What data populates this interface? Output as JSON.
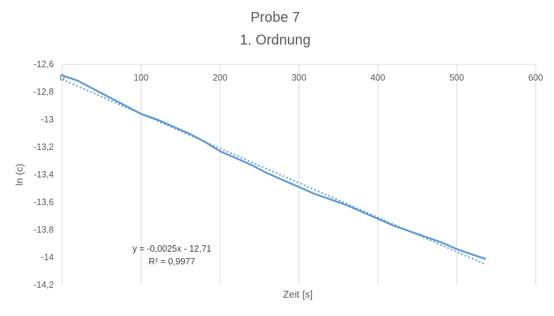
{
  "chart_data": {
    "type": "line",
    "title": [
      "Probe 7",
      "1. Ordnung"
    ],
    "xlabel": "Zeit [s]",
    "ylabel": "ln (c)",
    "xlim": [
      0,
      600
    ],
    "ylim": [
      -14.2,
      -12.6
    ],
    "x_ticks": [
      0,
      100,
      200,
      300,
      400,
      500,
      600
    ],
    "x_tick_labels": [
      "0",
      "100",
      "200",
      "300",
      "400",
      "500",
      "600"
    ],
    "y_ticks": [
      -12.6,
      -12.8,
      -13,
      -13.2,
      -13.4,
      -13.6,
      -13.8,
      -14,
      -14.2
    ],
    "y_tick_labels": [
      "-12,6",
      "-12,8",
      "-13",
      "-13,2",
      "-13,4",
      "-13,6",
      "-13,8",
      "-14",
      "-14,2"
    ],
    "x_axis_position": "top",
    "grid": {
      "vertical": true,
      "horizontal": false
    },
    "colors": {
      "series": "#5b9bd5",
      "trendline": "#5b9bd5",
      "grid": "#d9d9d9",
      "text": "#595959"
    },
    "series": [
      {
        "x": [
          0,
          20,
          40,
          60,
          80,
          100,
          120,
          140,
          160,
          180,
          200,
          220,
          240,
          260,
          280,
          300,
          320,
          340,
          360,
          380,
          400,
          420,
          440,
          460,
          480,
          500,
          520,
          536
        ],
        "y": [
          -12.68,
          -12.72,
          -12.78,
          -12.84,
          -12.9,
          -12.96,
          -13.0,
          -13.05,
          -13.1,
          -13.16,
          -13.23,
          -13.28,
          -13.33,
          -13.39,
          -13.44,
          -13.49,
          -13.54,
          -13.58,
          -13.62,
          -13.67,
          -13.72,
          -13.77,
          -13.81,
          -13.85,
          -13.89,
          -13.94,
          -13.98,
          -14.01
        ]
      }
    ],
    "trendline": {
      "type": "linear",
      "slope": -0.0025,
      "intercept": -12.71,
      "x_range": [
        0,
        536
      ],
      "equation_label": "y = -0,0025x - 12,71",
      "r2_label": "R² = 0,9977"
    }
  }
}
